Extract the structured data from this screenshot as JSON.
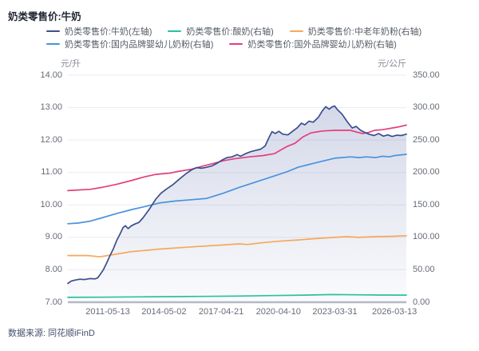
{
  "page": {
    "title": "奶类零售价:牛奶",
    "source": "数据来源: 同花顺iFinD"
  },
  "chart_data": {
    "type": "line",
    "title": "奶类零售价:牛奶",
    "grid": true,
    "legend_position": "top",
    "colors": {
      "milk": "#3c4e8f",
      "yogurt": "#2cc0a0",
      "midage_powder": "#f6a85a",
      "domestic_infant": "#4a93dd",
      "foreign_infant": "#e43f7d",
      "gridline": "#e9ebf2",
      "axis_line": "#b4bac8",
      "area_fill": "#6e7db4"
    },
    "left_axis": {
      "unit": "元/升",
      "min": 7,
      "max": 14,
      "ticks": [
        14,
        13,
        12,
        11,
        10,
        9,
        8,
        7
      ]
    },
    "right_axis": {
      "unit": "元/公斤",
      "min": 0,
      "max": 350,
      "ticks": [
        350,
        300,
        250,
        200,
        150,
        100,
        50,
        0
      ]
    },
    "x_ticks": [
      {
        "label": "2011-05-13",
        "t": 0.118
      },
      {
        "label": "2014-05-02",
        "t": 0.284
      },
      {
        "label": "2017-04-21",
        "t": 0.453
      },
      {
        "label": "2020-04-10",
        "t": 0.622
      },
      {
        "label": "2023-03-31",
        "t": 0.789
      },
      {
        "label": "2026-03-13",
        "t": 0.965
      }
    ],
    "series": [
      {
        "name": "奶类零售价:牛奶(左轴)",
        "color": "#3c4e8f",
        "axis": "left",
        "area": true,
        "points": [
          [
            0,
            7.58
          ],
          [
            0.01,
            7.65
          ],
          [
            0.02,
            7.68
          ],
          [
            0.035,
            7.71
          ],
          [
            0.05,
            7.7
          ],
          [
            0.065,
            7.73
          ],
          [
            0.08,
            7.72
          ],
          [
            0.088,
            7.75
          ],
          [
            0.095,
            7.85
          ],
          [
            0.105,
            8.0
          ],
          [
            0.115,
            8.22
          ],
          [
            0.125,
            8.45
          ],
          [
            0.135,
            8.66
          ],
          [
            0.145,
            8.92
          ],
          [
            0.155,
            9.12
          ],
          [
            0.163,
            9.3
          ],
          [
            0.17,
            9.36
          ],
          [
            0.178,
            9.27
          ],
          [
            0.188,
            9.36
          ],
          [
            0.2,
            9.42
          ],
          [
            0.21,
            9.46
          ],
          [
            0.222,
            9.6
          ],
          [
            0.24,
            9.86
          ],
          [
            0.26,
            10.18
          ],
          [
            0.275,
            10.36
          ],
          [
            0.29,
            10.48
          ],
          [
            0.31,
            10.62
          ],
          [
            0.33,
            10.8
          ],
          [
            0.35,
            10.97
          ],
          [
            0.365,
            11.08
          ],
          [
            0.38,
            11.15
          ],
          [
            0.395,
            11.13
          ],
          [
            0.41,
            11.16
          ],
          [
            0.425,
            11.2
          ],
          [
            0.44,
            11.28
          ],
          [
            0.455,
            11.38
          ],
          [
            0.47,
            11.46
          ],
          [
            0.485,
            11.48
          ],
          [
            0.5,
            11.55
          ],
          [
            0.51,
            11.5
          ],
          [
            0.525,
            11.58
          ],
          [
            0.54,
            11.64
          ],
          [
            0.555,
            11.68
          ],
          [
            0.57,
            11.72
          ],
          [
            0.583,
            11.82
          ],
          [
            0.593,
            12.05
          ],
          [
            0.603,
            12.26
          ],
          [
            0.613,
            12.2
          ],
          [
            0.623,
            12.27
          ],
          [
            0.635,
            12.18
          ],
          [
            0.65,
            12.16
          ],
          [
            0.665,
            12.28
          ],
          [
            0.678,
            12.38
          ],
          [
            0.69,
            12.52
          ],
          [
            0.7,
            12.47
          ],
          [
            0.712,
            12.58
          ],
          [
            0.725,
            12.55
          ],
          [
            0.74,
            12.7
          ],
          [
            0.752,
            12.9
          ],
          [
            0.762,
            13.03
          ],
          [
            0.772,
            12.95
          ],
          [
            0.78,
            13.02
          ],
          [
            0.788,
            13.05
          ],
          [
            0.797,
            12.93
          ],
          [
            0.81,
            12.8
          ],
          [
            0.825,
            12.57
          ],
          [
            0.84,
            12.37
          ],
          [
            0.852,
            12.42
          ],
          [
            0.865,
            12.3
          ],
          [
            0.878,
            12.23
          ],
          [
            0.892,
            12.17
          ],
          [
            0.905,
            12.14
          ],
          [
            0.918,
            12.2
          ],
          [
            0.932,
            12.12
          ],
          [
            0.945,
            12.16
          ],
          [
            0.958,
            12.11
          ],
          [
            0.972,
            12.15
          ],
          [
            0.985,
            12.14
          ],
          [
            1,
            12.18
          ]
        ]
      },
      {
        "name": "奶类零售价:酸奶(右轴)",
        "color": "#2cc0a0",
        "axis": "right",
        "area": false,
        "points": [
          [
            0,
            7.5
          ],
          [
            0.1,
            7.8
          ],
          [
            0.2,
            8.2
          ],
          [
            0.3,
            8.6
          ],
          [
            0.4,
            9.0
          ],
          [
            0.5,
            9.5
          ],
          [
            0.6,
            10.2
          ],
          [
            0.7,
            11.0
          ],
          [
            0.78,
            11.8
          ],
          [
            0.85,
            11.4
          ],
          [
            0.92,
            11.1
          ],
          [
            1,
            11.0
          ]
        ]
      },
      {
        "name": "奶类零售价:中老年奶粉(右轴)",
        "color": "#f6a85a",
        "axis": "right",
        "area": false,
        "points": [
          [
            0,
            72
          ],
          [
            0.059,
            72
          ],
          [
            0.094,
            70
          ],
          [
            0.141,
            74
          ],
          [
            0.188,
            78
          ],
          [
            0.23,
            80
          ],
          [
            0.271,
            82
          ],
          [
            0.33,
            84
          ],
          [
            0.388,
            86
          ],
          [
            0.45,
            88
          ],
          [
            0.506,
            90
          ],
          [
            0.53,
            89
          ],
          [
            0.58,
            92
          ],
          [
            0.624,
            94
          ],
          [
            0.68,
            96
          ],
          [
            0.741,
            98.5
          ],
          [
            0.788,
            100
          ],
          [
            0.824,
            101
          ],
          [
            0.859,
            100
          ],
          [
            0.906,
            101
          ],
          [
            0.953,
            101.5
          ],
          [
            1,
            102.5
          ]
        ]
      },
      {
        "name": "奶类零售价:国内品牌婴幼儿奶粉(右轴)",
        "color": "#4a93dd",
        "axis": "right",
        "area": false,
        "points": [
          [
            0,
            121
          ],
          [
            0.03,
            122
          ],
          [
            0.066,
            125
          ],
          [
            0.1,
            130
          ],
          [
            0.146,
            137
          ],
          [
            0.19,
            143
          ],
          [
            0.224,
            147
          ],
          [
            0.27,
            153
          ],
          [
            0.318,
            156
          ],
          [
            0.365,
            158
          ],
          [
            0.41,
            160
          ],
          [
            0.459,
            168
          ],
          [
            0.506,
            177
          ],
          [
            0.553,
            185
          ],
          [
            0.6,
            193
          ],
          [
            0.647,
            201
          ],
          [
            0.68,
            208
          ],
          [
            0.71,
            212
          ],
          [
            0.741,
            216
          ],
          [
            0.788,
            222
          ],
          [
            0.835,
            224
          ],
          [
            0.86,
            223
          ],
          [
            0.882,
            224
          ],
          [
            0.91,
            223
          ],
          [
            0.929,
            225
          ],
          [
            0.95,
            224
          ],
          [
            0.965,
            226
          ],
          [
            1,
            228
          ]
        ]
      },
      {
        "name": "奶类零售价:国外品牌婴幼儿奶粉(右轴)",
        "color": "#e43f7d",
        "axis": "right",
        "area": false,
        "points": [
          [
            0,
            172
          ],
          [
            0.03,
            173
          ],
          [
            0.066,
            174
          ],
          [
            0.1,
            177
          ],
          [
            0.146,
            182
          ],
          [
            0.19,
            188
          ],
          [
            0.224,
            193
          ],
          [
            0.26,
            197
          ],
          [
            0.301,
            199
          ],
          [
            0.33,
            202
          ],
          [
            0.365,
            205
          ],
          [
            0.4,
            210
          ],
          [
            0.43,
            214
          ],
          [
            0.459,
            218
          ],
          [
            0.49,
            221
          ],
          [
            0.536,
            224
          ],
          [
            0.576,
            226
          ],
          [
            0.61,
            229
          ],
          [
            0.647,
            240
          ],
          [
            0.671,
            245
          ],
          [
            0.695,
            255
          ],
          [
            0.718,
            261
          ],
          [
            0.74,
            263
          ],
          [
            0.753,
            264
          ],
          [
            0.788,
            265
          ],
          [
            0.81,
            265
          ],
          [
            0.835,
            265
          ],
          [
            0.855,
            262
          ],
          [
            0.871,
            260
          ],
          [
            0.89,
            262
          ],
          [
            0.906,
            265
          ],
          [
            0.93,
            266
          ],
          [
            0.953,
            268
          ],
          [
            0.975,
            270
          ],
          [
            1,
            273
          ]
        ]
      }
    ]
  }
}
